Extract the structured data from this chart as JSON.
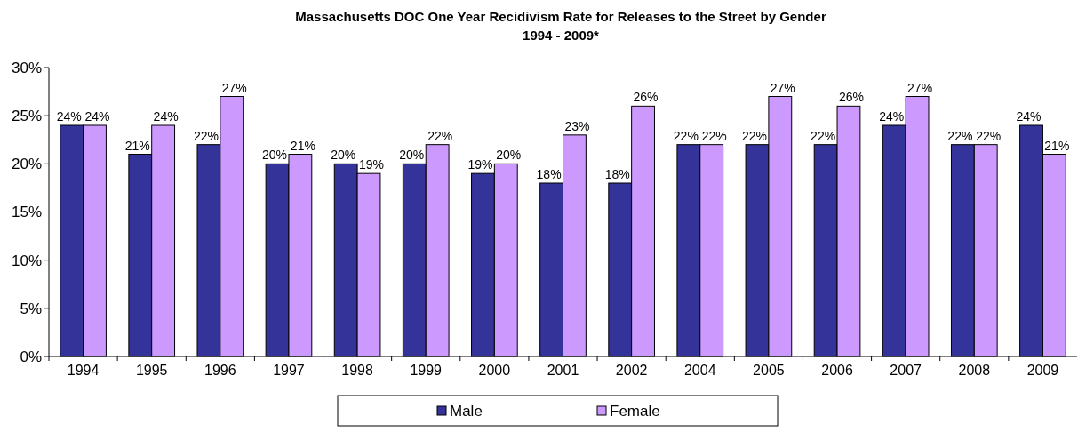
{
  "chart_data": {
    "type": "bar",
    "title": "Massachusetts DOC One Year Recidivism Rate for Releases to the Street by Gender\n1994 - 2009*",
    "categories": [
      "1994",
      "1995",
      "1996",
      "1997",
      "1998",
      "1999",
      "2000",
      "2001",
      "2002",
      "2004",
      "2005",
      "2006",
      "2007",
      "2008",
      "2009"
    ],
    "series": [
      {
        "name": "Male",
        "color": "#333399",
        "values": [
          24,
          21,
          22,
          20,
          20,
          20,
          19,
          18,
          18,
          22,
          22,
          22,
          24,
          22,
          24
        ],
        "value_labels": [
          "24%",
          "21%",
          "22%",
          "20%",
          "20%",
          "20%",
          "19%",
          "18%",
          "18%",
          "22%",
          "22%",
          "22%",
          "24%",
          "22%",
          "24%"
        ]
      },
      {
        "name": "Female",
        "color": "#cc99ff",
        "values": [
          24,
          24,
          27,
          21,
          19,
          22,
          20,
          23,
          26,
          22,
          27,
          26,
          27,
          22,
          21
        ],
        "value_labels": [
          "24%",
          "24%",
          "27%",
          "21%",
          "19%",
          "22%",
          "20%",
          "23%",
          "26%",
          "22%",
          "27%",
          "26%",
          "27%",
          "22%",
          "21%"
        ]
      }
    ],
    "ylim": [
      0,
      30
    ],
    "yticks": [
      {
        "value": 0,
        "label": "0%"
      },
      {
        "value": 5,
        "label": "5%"
      },
      {
        "value": 10,
        "label": "10%"
      },
      {
        "value": 15,
        "label": "15%"
      },
      {
        "value": 20,
        "label": "20%"
      },
      {
        "value": 25,
        "label": "25%"
      },
      {
        "value": 30,
        "label": "30%"
      }
    ],
    "legend": "bottom"
  }
}
